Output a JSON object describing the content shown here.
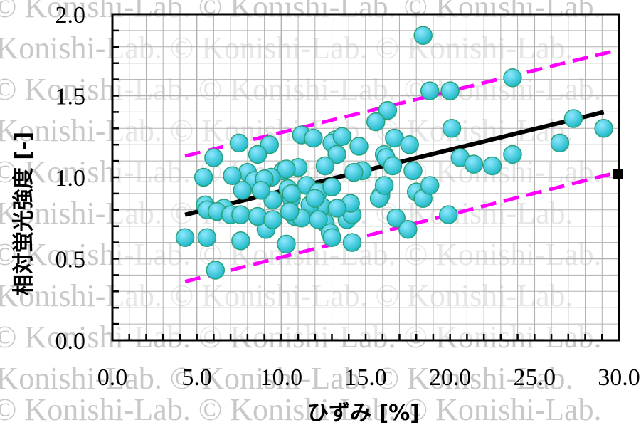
{
  "watermark_text": "© Konishi-Lab. © Konishi-Lab. © Konishi-Lab.",
  "chart_data": {
    "type": "scatter",
    "title": "",
    "xlabel": "ひずみ [%]",
    "ylabel": "相対蛍光強度 [-]",
    "xlim": [
      0,
      30
    ],
    "ylim": [
      0,
      2
    ],
    "x_ticks": [
      "0.0",
      "5.0",
      "10.0",
      "15.0",
      "20.0",
      "25.0",
      "30.0"
    ],
    "y_ticks": [
      "0.0",
      "0.5",
      "1.0",
      "1.5",
      "2.0"
    ],
    "grid": true,
    "colors": {
      "points": "#19b6c4",
      "point_highlight": "#8fe8ff",
      "point_edge": "#2aa07a",
      "trend": "#000000",
      "band": "#ff00ff",
      "grid": "#b0b0b0"
    },
    "series": [
      {
        "type": "scatter",
        "x": [
          18.4,
          23.7,
          18.8,
          20.0,
          16.3,
          15.6,
          27.3,
          29.1,
          20.1,
          16.7,
          9.3,
          11.2,
          11.9,
          13.2,
          13.0,
          13.6,
          14.6,
          16.1,
          17.6,
          13.3,
          7.5,
          8.6,
          6.0,
          16.2,
          20.6,
          23.7,
          26.5,
          21.4,
          22.5,
          5.4,
          11.0,
          14.8,
          12.6,
          16.6,
          10.1,
          10.3,
          9.4,
          8.0,
          7.1,
          8.4,
          9.0,
          10.4,
          11.5,
          12.2,
          13.0,
          14.3,
          15.9,
          18.0,
          18.4,
          18.8,
          17.8,
          15.8,
          16.1,
          12.4,
          11.7,
          10.6,
          9.5,
          8.8,
          7.7,
          6.6,
          5.5,
          5.6,
          6.2,
          7.0,
          12.6,
          13.9,
          14.2,
          16.8,
          17.5,
          19.9,
          10.8,
          11.2,
          9.1,
          7.6,
          8.6,
          12.2,
          12.9,
          9.5,
          10.3,
          13.0,
          14.2,
          7.6,
          4.3,
          5.6,
          10.5,
          14.1,
          13.3,
          12.0,
          10.6,
          6.1
        ],
        "y": [
          1.87,
          1.61,
          1.53,
          1.53,
          1.41,
          1.34,
          1.36,
          1.3,
          1.3,
          1.24,
          1.2,
          1.26,
          1.24,
          1.23,
          1.21,
          1.25,
          1.19,
          1.14,
          1.2,
          1.14,
          1.21,
          1.14,
          1.12,
          1.12,
          1.12,
          1.14,
          1.21,
          1.08,
          1.07,
          1.0,
          1.06,
          1.04,
          1.07,
          1.07,
          1.04,
          1.05,
          1.0,
          1.03,
          1.01,
          0.98,
          0.99,
          0.93,
          0.95,
          0.91,
          0.94,
          1.03,
          0.89,
          0.91,
          0.87,
          0.95,
          1.04,
          0.87,
          0.95,
          0.82,
          0.83,
          0.87,
          0.86,
          0.92,
          0.92,
          0.81,
          0.83,
          0.8,
          0.79,
          0.77,
          0.72,
          0.74,
          0.77,
          0.75,
          0.68,
          0.77,
          0.76,
          0.75,
          0.68,
          0.77,
          0.76,
          0.74,
          0.66,
          0.74,
          0.59,
          0.63,
          0.6,
          0.61,
          0.63,
          0.63,
          0.79,
          0.84,
          0.81,
          0.87,
          0.9,
          0.43
        ]
      },
      {
        "type": "line",
        "x": [
          4.3,
          29.1
        ],
        "y": [
          0.77,
          1.4
        ]
      },
      {
        "type": "line",
        "x": [
          4.3,
          29.9
        ],
        "y": [
          1.13,
          1.78
        ]
      },
      {
        "type": "line",
        "x": [
          4.3,
          29.9
        ],
        "y": [
          0.36,
          1.03
        ]
      }
    ]
  }
}
